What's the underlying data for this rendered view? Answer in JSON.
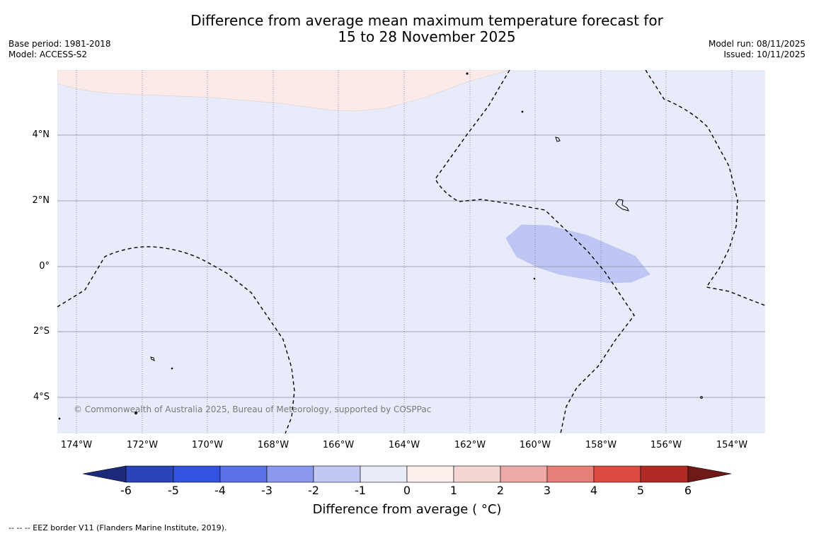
{
  "title": {
    "line1": "Difference from average mean maximum temperature forecast for",
    "line2": "15 to 28 November 2025"
  },
  "meta": {
    "base_period": "Base period: 1981-2018",
    "model": "Model: ACCESS-S2",
    "model_run": "Model run: 08/11/2025",
    "issued": "Issued: 10/11/2025"
  },
  "map": {
    "lat_labels": [
      "4°N",
      "2°N",
      "0°",
      "2°S",
      "4°S"
    ],
    "lon_labels": [
      "174°W",
      "172°W",
      "170°W",
      "168°W",
      "166°W",
      "164°W",
      "162°W",
      "160°W",
      "158°W",
      "156°W",
      "154°W"
    ],
    "copyright": "© Commonwealth of Australia 2025, Bureau of Meteorology, supported by COSPPac",
    "colors": {
      "ocean_neutral_negative": "#e8ebfa",
      "warm_anomaly": "#fbeae8",
      "cool_anomaly": "#bfc6f3"
    }
  },
  "colorbar": {
    "ticks": [
      "-6",
      "-5",
      "-4",
      "-3",
      "-2",
      "-1",
      "0",
      "1",
      "2",
      "3",
      "4",
      "5",
      "6"
    ],
    "label": "Difference from average ( °C)",
    "colors": [
      "#1b2a7a",
      "#2a43b8",
      "#3252e0",
      "#5a72e6",
      "#8a98ec",
      "#c2c8f4",
      "#e9ebf9",
      "#fcefec",
      "#f3d6d4",
      "#eeaaa6",
      "#e77f79",
      "#dc4a41",
      "#b02a25",
      "#6f1a18"
    ]
  },
  "footnote": "--  --  -- EEZ border V11 (Flanders Marine Institute, 2019)."
}
